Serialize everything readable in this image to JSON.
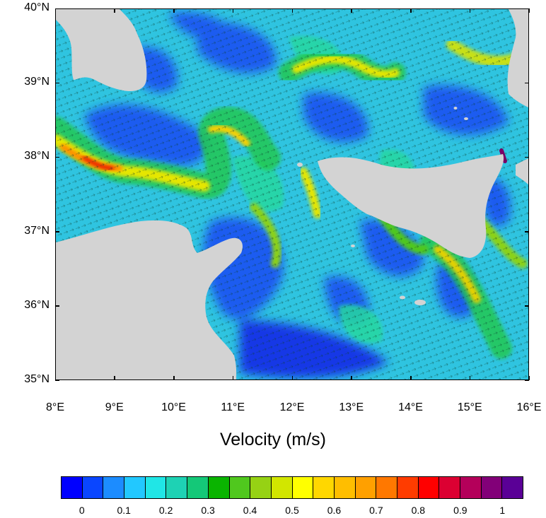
{
  "title": "Velocity (m/s)",
  "map": {
    "lat_labels": [
      "40°N",
      "39°N",
      "38°N",
      "37°N",
      "36°N",
      "35°N"
    ],
    "lon_labels": [
      "8°E",
      "9°E",
      "10°E",
      "11°E",
      "12°E",
      "13°E",
      "14°E",
      "15°E",
      "16°E"
    ],
    "lat_range": [
      35,
      40
    ],
    "lon_range": [
      8,
      16
    ],
    "land_color": "#d3d3d3",
    "ocean_base_color": "#2fc4e0"
  },
  "colorbar": {
    "labels": [
      "0",
      "0.1",
      "0.2",
      "0.3",
      "0.4",
      "0.5",
      "0.6",
      "0.7",
      "0.8",
      "0.9",
      "1"
    ],
    "colors": [
      "#0000ff",
      "#0a46ff",
      "#1c8cff",
      "#22c8ff",
      "#20e6e6",
      "#1ed2b4",
      "#14c878",
      "#0ab400",
      "#50c81e",
      "#96d214",
      "#d2e600",
      "#ffff00",
      "#ffd700",
      "#ffbe00",
      "#ffa000",
      "#ff7800",
      "#ff3c00",
      "#ff0000",
      "#dc0032",
      "#b4005a",
      "#820078",
      "#5a0096"
    ]
  }
}
